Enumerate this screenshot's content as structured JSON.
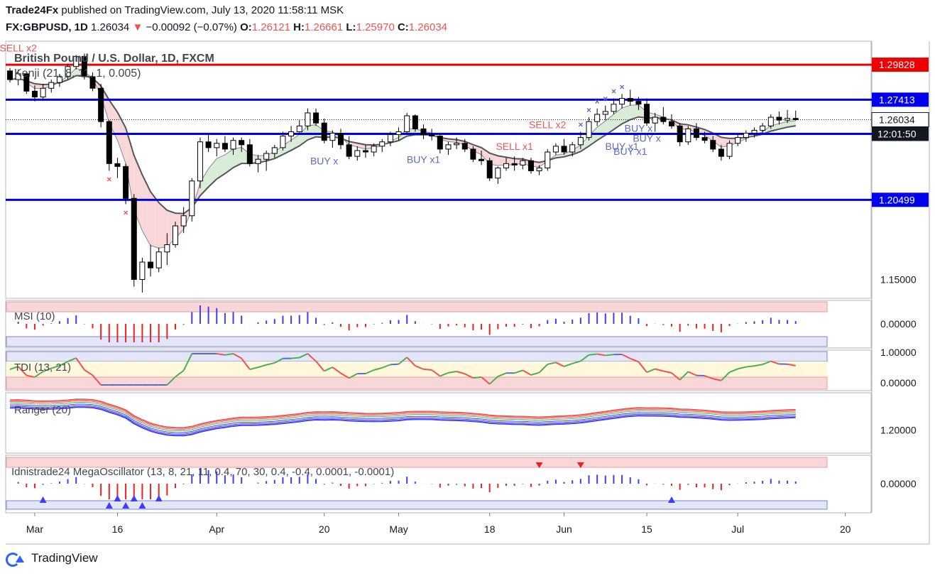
{
  "header": {
    "line1_bold": "Trade24Fx",
    "line1_rest": " published on TradingView.com, July 13, 2020 11:58:11 MSK",
    "symbol": "FX:GBPUSD, 1D",
    "last": "1.26034",
    "arrow": "▼",
    "change": "−0.00092 (−0.07%)",
    "o_label": "O:",
    "o": "1.26121",
    "h_label": "H:",
    "h": "1.26661",
    "l_label": "L:",
    "l": "1.25970",
    "c_label": "C:",
    "c": "1.26034"
  },
  "footer": {
    "brand": "TradingView"
  },
  "colors": {
    "up": "#ffffff",
    "down": "#000000",
    "blue_line": "#0000ee",
    "red_line": "#ee0000",
    "sell": "#ef5350",
    "buy": "#5c6bc0"
  },
  "chart_data": {
    "type": "candlestick",
    "title": "British Pound / U.S. Dollar, 1D, FXCM",
    "indicator": "Kenji (21, 8, 11, 1, 0.005)",
    "x_ticks": [
      {
        "label": "Mar",
        "i": 3
      },
      {
        "label": "16",
        "i": 13
      },
      {
        "label": "Apr",
        "i": 25
      },
      {
        "label": "20",
        "i": 38
      },
      {
        "label": "May",
        "i": 47
      },
      {
        "label": "18",
        "i": 58
      },
      {
        "label": "Jun",
        "i": 67
      },
      {
        "label": "15",
        "i": 77
      },
      {
        "label": "Jul",
        "i": 88
      },
      {
        "label": "20",
        "i": 101
      }
    ],
    "y_ticks": [
      {
        "v": 1.15,
        "label": "1.15000"
      }
    ],
    "price_lines": [
      {
        "v": 1.29828,
        "label": "1.29828",
        "color": "#ee0000"
      },
      {
        "v": 1.27413,
        "label": "1.27413",
        "color": "#0000ee"
      },
      {
        "v": 1.25054,
        "label": "1.25054",
        "color": "#0000ee"
      },
      {
        "v": 1.20499,
        "label": "1.20499",
        "color": "#0000ee"
      }
    ],
    "last_price": {
      "v": 1.26034,
      "label": "1.26034"
    },
    "countdown": "12:01:50",
    "candles": [
      [
        1.294,
        1.296,
        1.286,
        1.288
      ],
      [
        1.288,
        1.295,
        1.284,
        1.292
      ],
      [
        1.292,
        1.293,
        1.278,
        1.28
      ],
      [
        1.28,
        1.284,
        1.273,
        1.276
      ],
      [
        1.276,
        1.285,
        1.274,
        1.282
      ],
      [
        1.282,
        1.288,
        1.279,
        1.286
      ],
      [
        1.286,
        1.292,
        1.283,
        1.29
      ],
      [
        1.29,
        1.299,
        1.288,
        1.297
      ],
      [
        1.297,
        1.305,
        1.295,
        1.304
      ],
      [
        1.304,
        1.306,
        1.288,
        1.29
      ],
      [
        1.29,
        1.293,
        1.28,
        1.282
      ],
      [
        1.282,
        1.285,
        1.255,
        1.259
      ],
      [
        1.259,
        1.26,
        1.225,
        1.23
      ],
      [
        1.23,
        1.234,
        1.22,
        1.228
      ],
      [
        1.228,
        1.23,
        1.202,
        1.206
      ],
      [
        1.206,
        1.209,
        1.145,
        1.15
      ],
      [
        1.15,
        1.165,
        1.141,
        1.162
      ],
      [
        1.162,
        1.174,
        1.152,
        1.158
      ],
      [
        1.158,
        1.172,
        1.155,
        1.169
      ],
      [
        1.169,
        1.182,
        1.16,
        1.174
      ],
      [
        1.174,
        1.19,
        1.172,
        1.187
      ],
      [
        1.187,
        1.2,
        1.182,
        1.194
      ],
      [
        1.194,
        1.22,
        1.19,
        1.218
      ],
      [
        1.218,
        1.248,
        1.213,
        1.245
      ],
      [
        1.245,
        1.25,
        1.238,
        1.241
      ],
      [
        1.241,
        1.247,
        1.235,
        1.244
      ],
      [
        1.244,
        1.249,
        1.238,
        1.24
      ],
      [
        1.24,
        1.248,
        1.236,
        1.246
      ],
      [
        1.246,
        1.248,
        1.238,
        1.243
      ],
      [
        1.243,
        1.247,
        1.228,
        1.23
      ],
      [
        1.23,
        1.236,
        1.224,
        1.233
      ],
      [
        1.233,
        1.239,
        1.225,
        1.237
      ],
      [
        1.237,
        1.243,
        1.234,
        1.241
      ],
      [
        1.241,
        1.252,
        1.239,
        1.249
      ],
      [
        1.249,
        1.256,
        1.245,
        1.252
      ],
      [
        1.252,
        1.26,
        1.25,
        1.256
      ],
      [
        1.256,
        1.268,
        1.253,
        1.265
      ],
      [
        1.265,
        1.268,
        1.256,
        1.258
      ],
      [
        1.258,
        1.261,
        1.244,
        1.246
      ],
      [
        1.246,
        1.253,
        1.241,
        1.251
      ],
      [
        1.251,
        1.254,
        1.24,
        1.243
      ],
      [
        1.243,
        1.249,
        1.233,
        1.235
      ],
      [
        1.235,
        1.242,
        1.232,
        1.239
      ],
      [
        1.239,
        1.243,
        1.234,
        1.238
      ],
      [
        1.238,
        1.244,
        1.235,
        1.242
      ],
      [
        1.242,
        1.247,
        1.238,
        1.245
      ],
      [
        1.245,
        1.252,
        1.242,
        1.25
      ],
      [
        1.25,
        1.255,
        1.246,
        1.252
      ],
      [
        1.252,
        1.265,
        1.25,
        1.263
      ],
      [
        1.263,
        1.264,
        1.252,
        1.254
      ],
      [
        1.254,
        1.257,
        1.247,
        1.25
      ],
      [
        1.25,
        1.254,
        1.246,
        1.249
      ],
      [
        1.249,
        1.251,
        1.237,
        1.24
      ],
      [
        1.24,
        1.245,
        1.236,
        1.243
      ],
      [
        1.243,
        1.248,
        1.24,
        1.244
      ],
      [
        1.244,
        1.247,
        1.238,
        1.24
      ],
      [
        1.24,
        1.242,
        1.231,
        1.233
      ],
      [
        1.233,
        1.239,
        1.229,
        1.232
      ],
      [
        1.232,
        1.234,
        1.218,
        1.22
      ],
      [
        1.22,
        1.228,
        1.216,
        1.227
      ],
      [
        1.227,
        1.234,
        1.225,
        1.23
      ],
      [
        1.23,
        1.235,
        1.225,
        1.229
      ],
      [
        1.229,
        1.234,
        1.226,
        1.232
      ],
      [
        1.232,
        1.234,
        1.223,
        1.225
      ],
      [
        1.225,
        1.229,
        1.222,
        1.227
      ],
      [
        1.227,
        1.24,
        1.225,
        1.238
      ],
      [
        1.238,
        1.244,
        1.236,
        1.242
      ],
      [
        1.242,
        1.247,
        1.236,
        1.238
      ],
      [
        1.238,
        1.245,
        1.235,
        1.243
      ],
      [
        1.243,
        1.252,
        1.24,
        1.248
      ],
      [
        1.248,
        1.262,
        1.246,
        1.259
      ],
      [
        1.259,
        1.268,
        1.256,
        1.264
      ],
      [
        1.264,
        1.27,
        1.26,
        1.266
      ],
      [
        1.266,
        1.275,
        1.264,
        1.271
      ],
      [
        1.271,
        1.278,
        1.268,
        1.275
      ],
      [
        1.275,
        1.281,
        1.27,
        1.273
      ],
      [
        1.273,
        1.276,
        1.267,
        1.271
      ],
      [
        1.271,
        1.275,
        1.256,
        1.258
      ],
      [
        1.258,
        1.265,
        1.252,
        1.262
      ],
      [
        1.262,
        1.269,
        1.257,
        1.259
      ],
      [
        1.259,
        1.264,
        1.254,
        1.256
      ],
      [
        1.256,
        1.258,
        1.242,
        1.245
      ],
      [
        1.245,
        1.256,
        1.243,
        1.254
      ],
      [
        1.254,
        1.258,
        1.246,
        1.248
      ],
      [
        1.248,
        1.252,
        1.244,
        1.246
      ],
      [
        1.246,
        1.249,
        1.238,
        1.24
      ],
      [
        1.24,
        1.243,
        1.232,
        1.235
      ],
      [
        1.235,
        1.246,
        1.233,
        1.244
      ],
      [
        1.244,
        1.25,
        1.242,
        1.248
      ],
      [
        1.248,
        1.253,
        1.245,
        1.251
      ],
      [
        1.251,
        1.255,
        1.248,
        1.253
      ],
      [
        1.253,
        1.258,
        1.25,
        1.256
      ],
      [
        1.256,
        1.264,
        1.254,
        1.262
      ],
      [
        1.262,
        1.266,
        1.257,
        1.26
      ],
      [
        1.26,
        1.267,
        1.258,
        1.2612
      ],
      [
        1.26121,
        1.26661,
        1.2597,
        1.26034
      ]
    ],
    "signals": [
      {
        "i": 1,
        "text": "SELL x2",
        "color": "#ef5350",
        "v": 1.3075
      },
      {
        "i": 38,
        "text": "BUY x",
        "color": "#5c6bc0",
        "v": 1.2295
      },
      {
        "i": 50,
        "text": "BUY x1",
        "color": "#5c6bc0",
        "v": 1.2305
      },
      {
        "i": 61,
        "text": "SELL x1",
        "color": "#ef5350",
        "v": 1.2395
      },
      {
        "i": 65,
        "text": "SELL x2",
        "color": "#ef5350",
        "v": 1.2545
      },
      {
        "i": 76,
        "text": "BUY x",
        "color": "#5c6bc0",
        "v": 1.252
      },
      {
        "i": 74,
        "text": "BUY x1",
        "color": "#5c6bc0",
        "v": 1.2395
      },
      {
        "i": 77,
        "text": "BUY x",
        "color": "#5c6bc0",
        "v": 1.245
      },
      {
        "i": 75,
        "text": "BUY x1",
        "color": "#5c6bc0",
        "v": 1.236
      }
    ],
    "panes": [
      {
        "name": "MSI (10)",
        "tick": "0.00000",
        "kind": "hist"
      },
      {
        "name": "TDI (13, 21)",
        "ticks": [
          "1.00000",
          "0.00000"
        ],
        "kind": "line"
      },
      {
        "name": "Ranger (20)",
        "tick": "1.20000",
        "kind": "bands"
      },
      {
        "name": "Idnistrade24 MegaOscillator (13, 8, 21, 11, 0.4, 70, 30, 0.4, -0.4, 0.0001, -0.0001)",
        "tick": "0.00000",
        "kind": "hist2"
      }
    ]
  }
}
